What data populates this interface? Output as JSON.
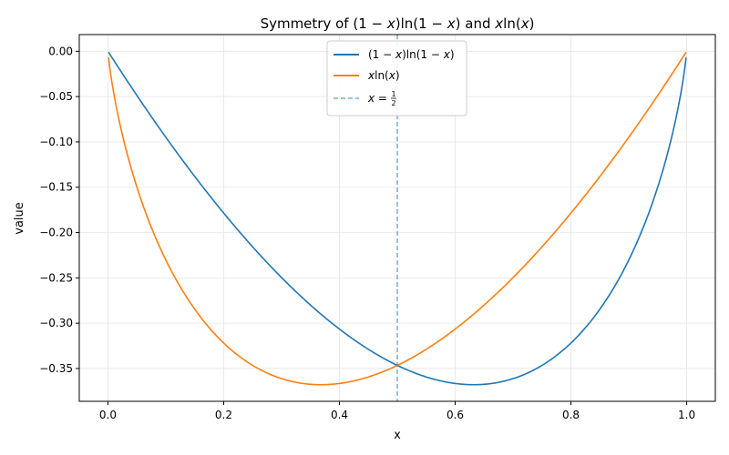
{
  "chart_data": {
    "type": "line",
    "title_parts": {
      "t1": "Symmetry of ",
      "t2": "(1 − ",
      "t3": "x",
      "t4": ")ln(1 − ",
      "t5": "x",
      "t6": ") and ",
      "t7": "x",
      "t8": "ln(",
      "t9": "x",
      "t10": ")"
    },
    "xlabel": "x",
    "ylabel": "value",
    "xlim": [
      -0.0495,
      1.0495
    ],
    "ylim": [
      -0.3862,
      0.0184
    ],
    "xticks": [
      0.0,
      0.2,
      0.4,
      0.6,
      0.8,
      1.0
    ],
    "xtick_labels": [
      "0.0",
      "0.2",
      "0.4",
      "0.6",
      "0.8",
      "1.0"
    ],
    "yticks": [
      0.0,
      -0.05,
      -0.1,
      -0.15,
      -0.2,
      -0.25,
      -0.3,
      -0.35
    ],
    "ytick_labels": [
      "0.00",
      "−0.05",
      "−0.10",
      "−0.15",
      "−0.20",
      "−0.25",
      "−0.30",
      "−0.35"
    ],
    "grid": true,
    "legend_position": "upper-center",
    "series": [
      {
        "key": "s1",
        "legend_parts": [
          "(1 − ",
          "x",
          ")ln(1 − ",
          "x",
          ")"
        ],
        "color": "#1f77b4",
        "style": "solid",
        "x_range": [
          0.001,
          0.999
        ],
        "function": "(1-x)ln(1-x)",
        "samples": 400
      },
      {
        "key": "s2",
        "legend_parts": [
          "",
          "x",
          "ln(",
          "x",
          ")"
        ],
        "color": "#ff7f0e",
        "style": "solid",
        "x_range": [
          0.001,
          0.999
        ],
        "function": "x ln(x)",
        "samples": 400
      }
    ],
    "reference_line": {
      "legend_parts": [
        "x",
        " = ",
        "1",
        "2"
      ],
      "x": 0.5,
      "color": "#1f77b4",
      "style": "dashed",
      "alpha": 0.6
    }
  }
}
